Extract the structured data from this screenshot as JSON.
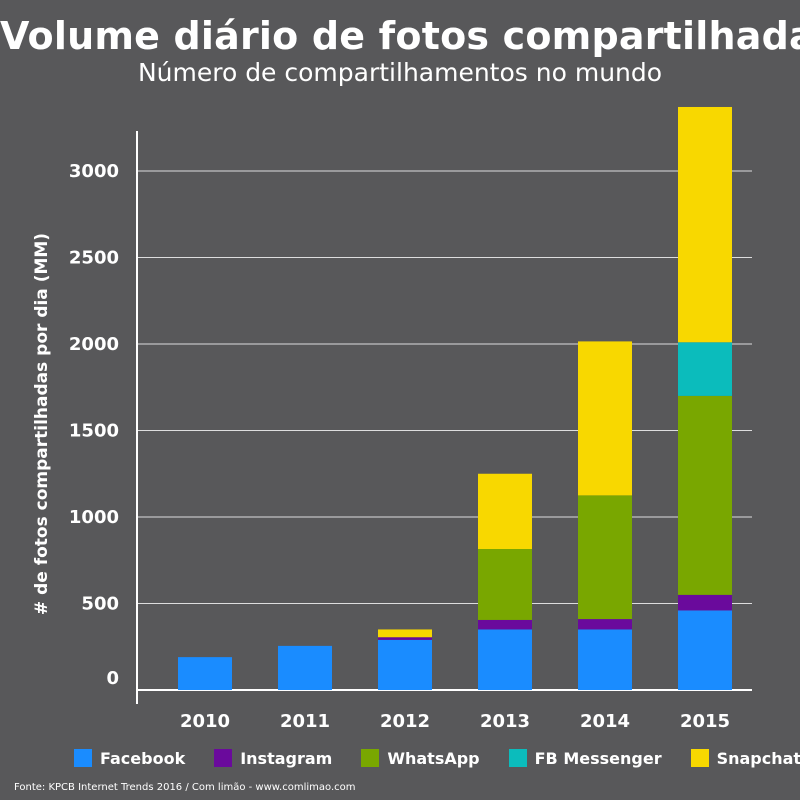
{
  "title": "Volume diário de fotos compartilhadas",
  "subtitle": "Número de compartilhamentos no mundo",
  "source": "Fonte: KPCB Internet Trends 2016 / Com limão - www.comlimao.com",
  "chart_data": {
    "type": "bar",
    "stacked": true,
    "title": "Volume diário de fotos compartilhadas",
    "subtitle": "Número de compartilhamentos no mundo",
    "xlabel": "",
    "ylabel": "# de fotos compartilhadas por dia (MM)",
    "ylim": [
      0,
      3300
    ],
    "yticks": [
      0,
      500,
      1000,
      1500,
      2000,
      2500,
      3000
    ],
    "grid": true,
    "legend_position": "bottom",
    "categories": [
      "2010",
      "2011",
      "2012",
      "2013",
      "2014",
      "2015"
    ],
    "series": [
      {
        "name": "Facebook",
        "color": "#1a8cff",
        "values": [
          190,
          255,
          290,
          350,
          350,
          460
        ]
      },
      {
        "name": "Instagram",
        "color": "#6a0a9c",
        "values": [
          0,
          0,
          15,
          55,
          60,
          90
        ]
      },
      {
        "name": "WhatsApp",
        "color": "#79a700",
        "values": [
          0,
          0,
          0,
          410,
          715,
          1150
        ]
      },
      {
        "name": "FB Messenger",
        "color": "#0bbcbc",
        "values": [
          0,
          0,
          0,
          0,
          0,
          310
        ]
      },
      {
        "name": "Snapchat",
        "color": "#f8d800",
        "values": [
          0,
          0,
          45,
          435,
          890,
          1360
        ]
      }
    ]
  }
}
